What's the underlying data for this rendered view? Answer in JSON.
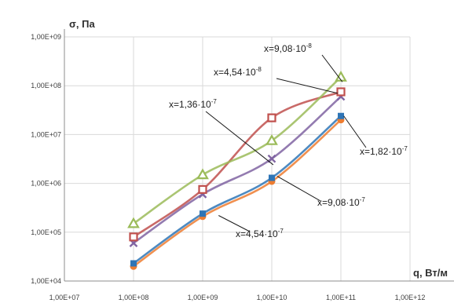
{
  "chart_data": {
    "type": "line",
    "xlabel": "q, Вт/м",
    "ylabel": "σ, Па",
    "x_scale": "log",
    "y_scale": "log",
    "xlim": [
      10000000.0,
      1000000000000.0
    ],
    "ylim": [
      10000.0,
      1000000000.0
    ],
    "x_ticks": [
      10000000.0,
      100000000.0,
      1000000000.0,
      10000000000.0,
      100000000000.0,
      1000000000000.0
    ],
    "x_tick_labels": [
      "1,00E+07",
      "1,00E+08",
      "1,00E+09",
      "1,00E+10",
      "1,00E+11",
      "1,00E+12"
    ],
    "y_ticks": [
      10000.0,
      100000.0,
      1000000.0,
      10000000.0,
      100000000.0,
      1000000000.0
    ],
    "y_tick_labels": [
      "1,00E+04",
      "1,00E+05",
      "1,00E+06",
      "1,00E+07",
      "1,00E+08",
      "1,00E+09"
    ],
    "grid": true,
    "x": [
      100000000.0,
      1000000000.0,
      10000000000.0,
      100000000000.0
    ],
    "series": [
      {
        "color": "#ed7d31",
        "marker": "circle",
        "values": [
          20000.0,
          210000.0,
          1100000.0,
          20000000.0
        ]
      },
      {
        "color": "#2e75b6",
        "marker": "square",
        "values": [
          23000.0,
          240000.0,
          1300000.0,
          24000000.0
        ]
      },
      {
        "color": "#8064a2",
        "marker": "x",
        "values": [
          60000.0,
          600000.0,
          3200000.0,
          60000000.0
        ]
      },
      {
        "color": "#c0504d",
        "marker": "square-o",
        "values": [
          80000.0,
          750000.0,
          22000000.0,
          75000000.0
        ]
      },
      {
        "color": "#9bbb59",
        "marker": "triangle",
        "values": [
          150000.0,
          1500000.0,
          7500000.0,
          150000000.0
        ]
      }
    ],
    "annotations": [
      {
        "base": "x=9,08·10",
        "exp": "-8",
        "ax": 1150000000.0,
        "ay": 350000000.0,
        "tx": 105000000000.0,
        "ty": 120000000.0,
        "anchor": "start"
      },
      {
        "base": "x=4,54·10",
        "exp": "-8",
        "ax": 1000000000.0,
        "ay": 130000000.0,
        "tx": 90000000000.0,
        "ty": 70000000.0,
        "anchor": "start"
      },
      {
        "base": "x=1,36·10",
        "exp": "-7",
        "ax": 370000000.0,
        "ay": 30000000.0,
        "tx": 10500000000.0,
        "ty": 2400000.0,
        "anchor": "start"
      },
      {
        "base": "x=1,82·10",
        "exp": "-7",
        "ax": 390000000000.0,
        "ay": 2600000.0,
        "tx": 110000000000.0,
        "ty": 24000000.0,
        "anchor": "start"
      },
      {
        "base": "x=9,08·10",
        "exp": "-7",
        "ax": 130000000000.0,
        "ay": 140000.0,
        "tx": 12000000000.0,
        "ty": 1400000.0,
        "anchor": "start"
      },
      {
        "base": "x=4,54·10",
        "exp": "-7",
        "ax": 17000000000.0,
        "ay": 9000.0,
        "tx": 1700000000.0,
        "ty": 220000.0,
        "anchor": "start"
      }
    ]
  }
}
